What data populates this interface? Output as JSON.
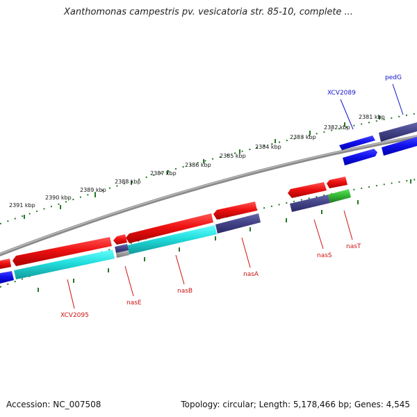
{
  "title": "Xanthomonas campestris pv. vesicatoria str. 85-10, complete ...",
  "footer": {
    "accession": "Accession: NC_007508",
    "topology": "Topology: circular; Length: 5,178,466 bp; Genes: 4,545"
  },
  "colors": {
    "red": "#ee1111",
    "cyan": "#22dddd",
    "blue": "#1111ee",
    "slate": "#444488",
    "green": "#33bb33",
    "gray": "#888888",
    "backbone": "#888888",
    "tick": "#227722",
    "label_forward": "#1111cc",
    "label_reverse": "#cc1111"
  },
  "scale": {
    "ticks_kbp": [
      2381,
      2382,
      2383,
      2384,
      2385,
      2386,
      2387,
      2388,
      2389,
      2390,
      2391
    ],
    "labels": [
      "2381 kbp",
      "2382 kbp",
      "2383 kbp",
      "2384 kbp",
      "2385 kbp",
      "2386 kbp",
      "2387 kbp",
      "2388 kbp",
      "2389 kbp",
      "2390 kbp",
      "2391 kbp"
    ]
  },
  "gene_labels": {
    "XCV2089": "XCV2089",
    "pedG": "pedG",
    "nasS": "nasS",
    "nasT": "nasT",
    "nasA": "nasA",
    "nasB": "nasB",
    "nasE": "nasE",
    "XCV2095": "XCV2095"
  }
}
